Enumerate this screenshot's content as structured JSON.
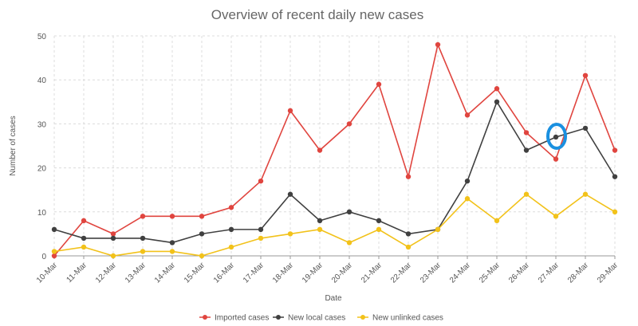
{
  "chart_data": {
    "type": "line",
    "title": "Overview of recent daily new cases",
    "xlabel": "Date",
    "ylabel": "Number of cases",
    "ylim": [
      0,
      50
    ],
    "yticks": [
      0,
      10,
      20,
      30,
      40,
      50
    ],
    "grid": true,
    "legend_position": "bottom",
    "categories": [
      "10-Mar",
      "11-Mar",
      "12-Mar",
      "13-Mar",
      "14-Mar",
      "15-Mar",
      "16-Mar",
      "17-Mar",
      "18-Mar",
      "19-Mar",
      "20-Mar",
      "21-Mar",
      "22-Mar",
      "23-Mar",
      "24-Mar",
      "25-Mar",
      "26-Mar",
      "27-Mar",
      "28-Mar",
      "29-Mar"
    ],
    "series": [
      {
        "name": "Imported cases",
        "color": "#e0453f",
        "values": [
          0,
          8,
          5,
          9,
          9,
          9,
          11,
          17,
          33,
          24,
          30,
          39,
          18,
          48,
          32,
          38,
          28,
          22,
          41,
          24
        ]
      },
      {
        "name": "New local cases",
        "color": "#404040",
        "values": [
          6,
          4,
          4,
          4,
          3,
          5,
          6,
          6,
          14,
          8,
          10,
          8,
          5,
          6,
          17,
          35,
          24,
          27,
          29,
          18
        ]
      },
      {
        "name": "New unlinked cases",
        "color": "#f2c21a",
        "values": [
          1,
          2,
          0,
          1,
          1,
          0,
          2,
          4,
          5,
          6,
          3,
          6,
          2,
          6,
          13,
          8,
          14,
          9,
          14,
          10
        ]
      }
    ],
    "highlight": {
      "series": "New local cases",
      "category": "27-Mar",
      "color": "#1a90e0"
    }
  }
}
